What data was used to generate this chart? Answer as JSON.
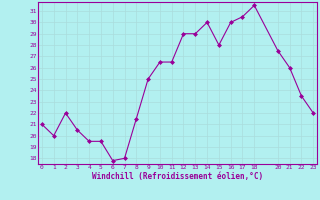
{
  "x": [
    0,
    1,
    2,
    3,
    4,
    5,
    6,
    7,
    8,
    9,
    10,
    11,
    12,
    13,
    14,
    15,
    16,
    17,
    18,
    20,
    21,
    22,
    23
  ],
  "y": [
    21,
    20,
    22,
    20.5,
    19.5,
    19.5,
    17.8,
    18,
    21.5,
    25,
    26.5,
    26.5,
    29,
    29,
    30,
    28,
    30,
    30.5,
    31.5,
    27.5,
    26,
    23.5,
    22
  ],
  "line_color": "#990099",
  "marker_color": "#990099",
  "bg_color": "#b2f0f0",
  "grid_color": "#aadddd",
  "xlabel": "Windchill (Refroidissement éolien,°C)",
  "ytick_min": 18,
  "ytick_max": 31,
  "xticks": [
    0,
    1,
    2,
    3,
    4,
    5,
    6,
    7,
    8,
    9,
    10,
    11,
    12,
    13,
    14,
    15,
    16,
    17,
    18,
    20,
    21,
    22,
    23
  ],
  "xlim": [
    -0.3,
    23.3
  ],
  "ylim": [
    17.5,
    31.8
  ]
}
